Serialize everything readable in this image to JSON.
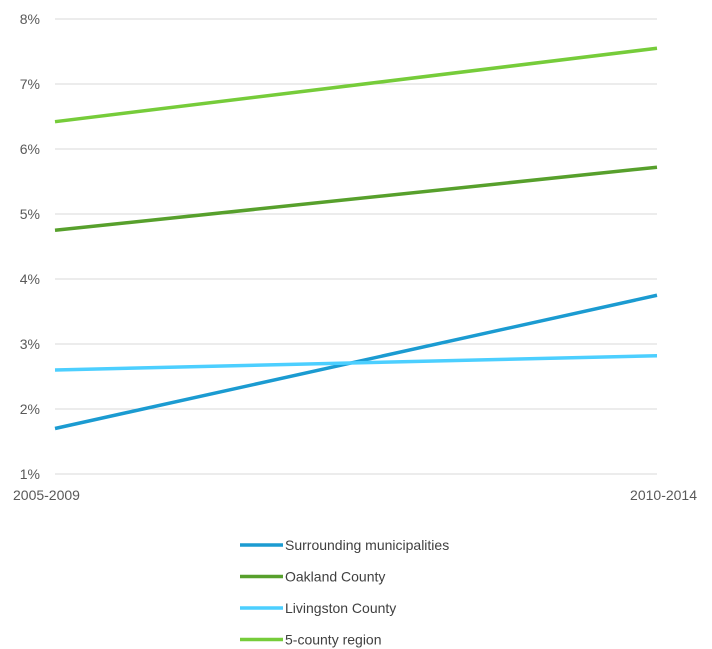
{
  "chart_data": {
    "type": "line",
    "title": "",
    "xlabel": "",
    "ylabel": "",
    "categories": [
      "2005-2009",
      "2010-2014"
    ],
    "ylim": [
      1,
      8
    ],
    "y_ticks": [
      "1%",
      "2%",
      "3%",
      "4%",
      "5%",
      "6%",
      "7%",
      "8%"
    ],
    "grid": true,
    "legend_position": "bottom",
    "series": [
      {
        "name": "Surrounding municipalities",
        "values": [
          1.7,
          3.75
        ],
        "color": "#1b9bd1"
      },
      {
        "name": "Oakland County",
        "values": [
          4.75,
          5.72
        ],
        "color": "#57a02c"
      },
      {
        "name": "Livingston County",
        "values": [
          2.6,
          2.82
        ],
        "color": "#4ccfff"
      },
      {
        "name": "5-county region",
        "values": [
          6.42,
          7.55
        ],
        "color": "#76cc3a"
      }
    ]
  }
}
